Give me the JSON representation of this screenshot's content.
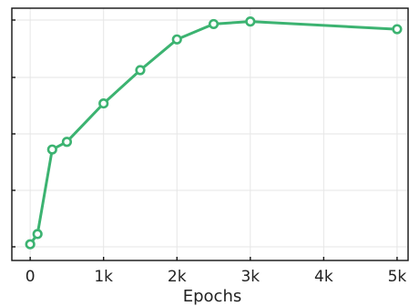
{
  "chart_data": {
    "type": "line",
    "title": "",
    "xlabel": "Epochs",
    "ylabel": "",
    "x_tick_values": [
      0,
      1000,
      2000,
      3000,
      4000,
      5000
    ],
    "x_tick_labels": [
      "0",
      "1k",
      "2k",
      "3k",
      "4k",
      "5k"
    ],
    "y_ticks_labeled": false,
    "grid": true,
    "series": [
      {
        "color": "#3cb371",
        "marker": "hollow-circle",
        "x": [
          0,
          100,
          300,
          500,
          1000,
          1500,
          2000,
          2500,
          3000,
          5000
        ],
        "values": [
          0.01,
          0.05,
          0.38,
          0.41,
          0.56,
          0.69,
          0.81,
          0.87,
          0.88,
          0.85
        ]
      }
    ],
    "xlim": [
      -250,
      5150
    ],
    "ylim": [
      0,
      0.9
    ]
  }
}
